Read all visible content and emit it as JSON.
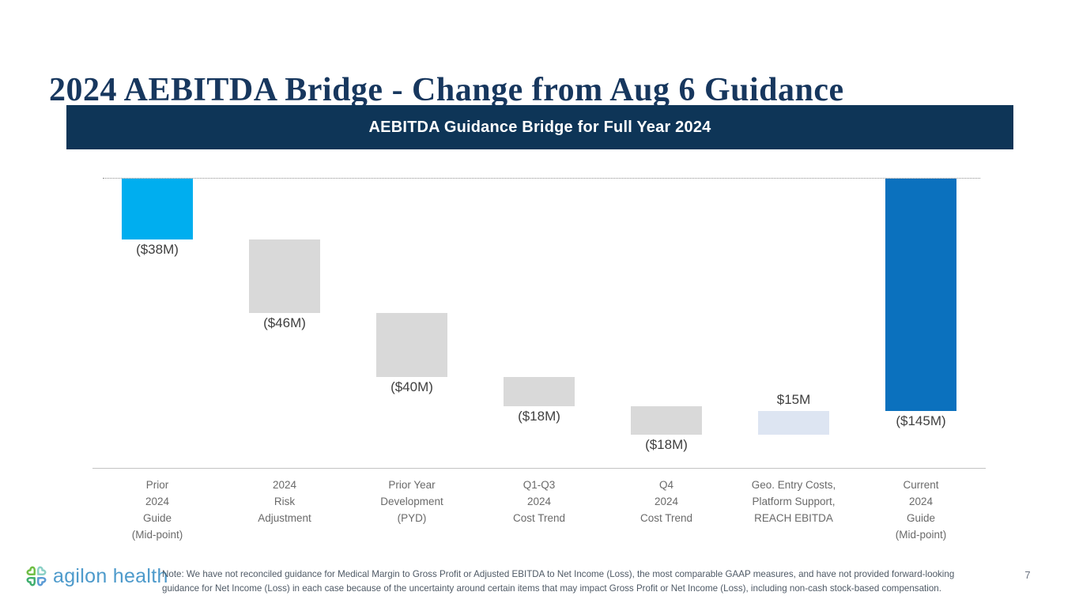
{
  "slide": {
    "title": "2024 AEBITDA Bridge - Change from Aug 6 Guidance",
    "page_number": "7",
    "footer": {
      "logo_text": "agilon health",
      "note_line1": "Note: We have not reconciled guidance for Medical Margin to Gross Profit or Adjusted EBITDA to Net Income (Loss), the most comparable GAAP measures, and have not provided forward-looking",
      "note_line2": "guidance for Net Income (Loss) in each case because of the uncertainty around certain items that may impact Gross Profit or Net Income (Loss), including non-cash stock-based compensation."
    }
  },
  "chart_data": {
    "type": "bar",
    "subtype": "waterfall",
    "title": "AEBITDA Guidance Bridge for Full Year 2024",
    "unit": "USD millions",
    "baseline": 0,
    "ylim": [
      -160,
      0
    ],
    "grid": "dotted baseline at 0 only, no y-axis ticks",
    "legend": "none",
    "categories": [
      "Prior 2024 Guide (Mid-point)",
      "2024 Risk Adjustment",
      "Prior Year Development (PYD)",
      "Q1-Q3 2024 Cost Trend",
      "Q4 2024 Cost Trend",
      "Geo. Entry Costs, Platform Support, REACH EBITDA",
      "Current 2024 Guide (Mid-point)"
    ],
    "values": [
      -38,
      -46,
      -40,
      -18,
      -18,
      15,
      -145
    ],
    "bars": [
      {
        "category_lines": [
          "Prior",
          "2024",
          "Guide",
          "(Mid-point)"
        ],
        "value": -38,
        "label": "($38M)",
        "label_position": "below",
        "color": "#00AEEF",
        "is_total": true
      },
      {
        "category_lines": [
          "2024",
          "Risk",
          "Adjustment"
        ],
        "value": -46,
        "label": "($46M)",
        "label_position": "below",
        "color": "#D9D9D9",
        "is_total": false
      },
      {
        "category_lines": [
          "Prior Year",
          "Development",
          "(PYD)"
        ],
        "value": -40,
        "label": "($40M)",
        "label_position": "below",
        "color": "#D9D9D9",
        "is_total": false
      },
      {
        "category_lines": [
          "Q1-Q3",
          "2024",
          "Cost Trend"
        ],
        "value": -18,
        "label": "($18M)",
        "label_position": "below",
        "color": "#D9D9D9",
        "is_total": false
      },
      {
        "category_lines": [
          "Q4",
          "2024",
          "Cost Trend"
        ],
        "value": -18,
        "label": "($18M)",
        "label_position": "below",
        "color": "#D9D9D9",
        "is_total": false
      },
      {
        "category_lines": [
          "Geo. Entry Costs,",
          "Platform Support,",
          "REACH EBITDA"
        ],
        "value": 15,
        "label": "$15M",
        "label_position": "above",
        "color": "#DDE5F2",
        "is_total": false
      },
      {
        "category_lines": [
          "Current",
          "2024",
          "Guide",
          "(Mid-point)"
        ],
        "value": -145,
        "label": "($145M)",
        "label_position": "below",
        "color": "#0B71BE",
        "is_total": true
      }
    ]
  },
  "colors": {
    "title_navy": "#17375E",
    "banner_navy": "#0E3557",
    "accent_cyan": "#00AEEF",
    "neutral_gray_bar": "#D9D9D9",
    "light_blue_bar": "#DDE5F2",
    "blue_bar": "#0B71BE",
    "logo_blue": "#4D9ACB",
    "logo_green": "#6FBE44"
  }
}
